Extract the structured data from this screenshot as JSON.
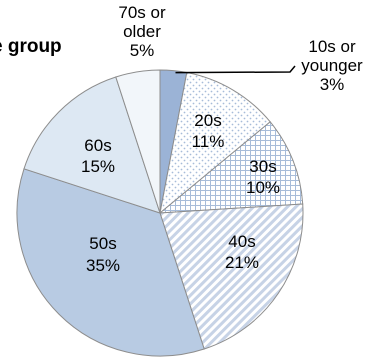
{
  "chart_data": {
    "type": "pie",
    "title": "e group",
    "slices": [
      {
        "label_lines": [
          "10s or",
          "younger"
        ],
        "pct": "3%",
        "value": 3,
        "color": "#9bb3d6",
        "pattern": "none",
        "name": "slice-10s-or-younger"
      },
      {
        "label_lines": [
          "20s"
        ],
        "pct": "11%",
        "value": 11,
        "color": "#ffffff",
        "pattern": "dots",
        "name": "slice-20s"
      },
      {
        "label_lines": [
          "30s"
        ],
        "pct": "10%",
        "value": 10,
        "color": "#ffffff",
        "pattern": "grid",
        "name": "slice-30s"
      },
      {
        "label_lines": [
          "40s"
        ],
        "pct": "21%",
        "value": 21,
        "color": "#ffffff",
        "pattern": "diagonal",
        "name": "slice-40s"
      },
      {
        "label_lines": [
          "50s"
        ],
        "pct": "35%",
        "value": 35,
        "color": "#b8cbe3",
        "pattern": "none",
        "name": "slice-50s"
      },
      {
        "label_lines": [
          "60s"
        ],
        "pct": "15%",
        "value": 15,
        "color": "#dde8f3",
        "pattern": "none",
        "name": "slice-60s"
      },
      {
        "label_lines": [
          "70s or",
          "older"
        ],
        "pct": "5%",
        "value": 5,
        "color": "#f2f6fa",
        "pattern": "none",
        "name": "slice-70s-or-older"
      }
    ]
  }
}
